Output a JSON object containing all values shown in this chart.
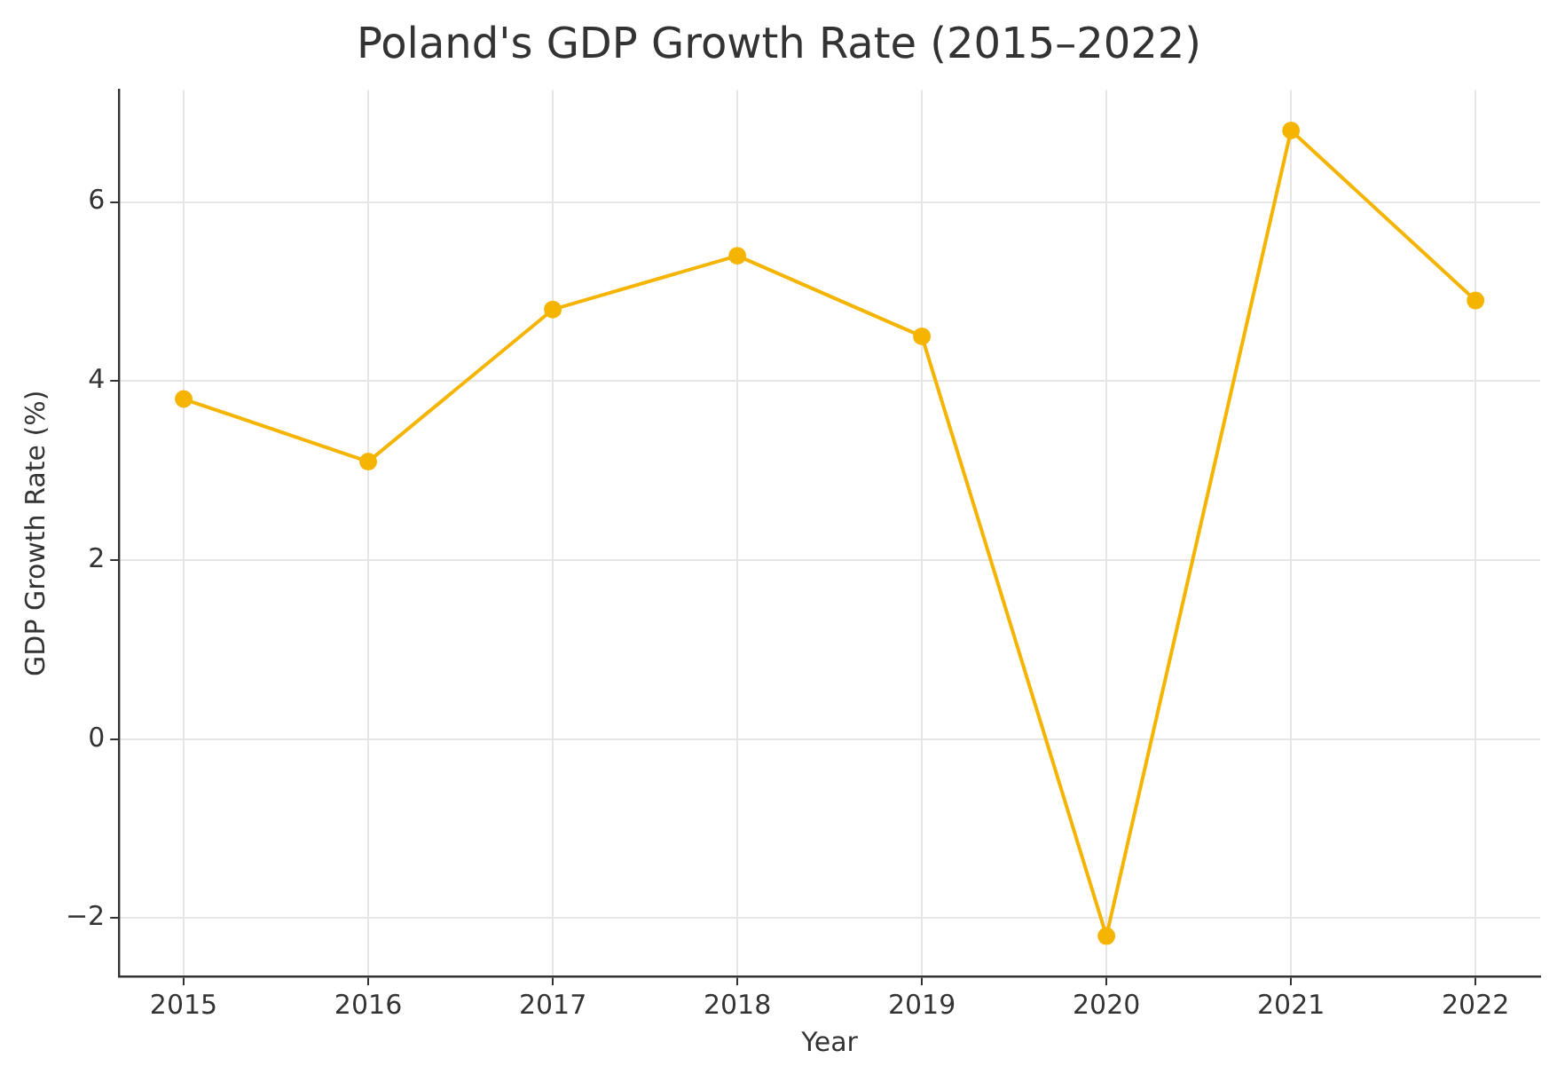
{
  "chart_data": {
    "type": "line",
    "title": "Poland's GDP Growth Rate (2015–2022)",
    "xlabel": "Year",
    "ylabel": "GDP Growth Rate (%)",
    "x": [
      2015,
      2016,
      2017,
      2018,
      2019,
      2020,
      2021,
      2022
    ],
    "series": [
      {
        "color": "#f4b400",
        "values": [
          3.8,
          3.1,
          4.8,
          5.4,
          4.5,
          -2.2,
          6.8,
          4.9
        ]
      }
    ],
    "xlim": [
      2014.65,
      2022.35
    ],
    "xticks": [
      2015,
      2016,
      2017,
      2018,
      2019,
      2020,
      2021,
      2022
    ],
    "ylim": [
      -2.65,
      7.25
    ],
    "yticks": [
      -2,
      0,
      2,
      4,
      6
    ],
    "grid": true,
    "marker": "circle",
    "line_style": "solid",
    "legend": false
  }
}
